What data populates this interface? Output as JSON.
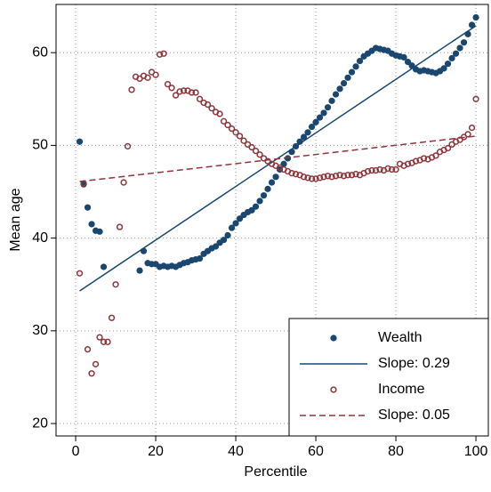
{
  "chart_data": {
    "type": "scatter",
    "x_label": "Percentile",
    "y_label": "Mean age",
    "xlim": [
      -4.9,
      103.1
    ],
    "ylim": [
      18.66,
      65.2
    ],
    "xticks": [
      0,
      20,
      40,
      60,
      80,
      100
    ],
    "yticks": [
      20,
      30,
      40,
      50,
      60
    ],
    "grid": true,
    "legend": "lower right",
    "series": [
      {
        "name": "Wealth",
        "style": "filled",
        "color": "#1a476f",
        "x": [
          1,
          2,
          3,
          4,
          5,
          6,
          7,
          16,
          17,
          18,
          19,
          20,
          21,
          22,
          23,
          24,
          25,
          26,
          27,
          28,
          29,
          30,
          31,
          32,
          33,
          34,
          35,
          36,
          37,
          38,
          39,
          40,
          41,
          42,
          43,
          44,
          45,
          46,
          47,
          48,
          49,
          50,
          51,
          52,
          53,
          54,
          55,
          56,
          57,
          58,
          59,
          60,
          61,
          62,
          63,
          64,
          65,
          66,
          67,
          68,
          69,
          70,
          71,
          72,
          73,
          74,
          75,
          76,
          77,
          78,
          79,
          80,
          81,
          82,
          83,
          84,
          85,
          86,
          87,
          88,
          89,
          90,
          91,
          92,
          93,
          94,
          95,
          96,
          97,
          98,
          99,
          100
        ],
        "values": [
          50.4,
          45.8,
          43.3,
          41.5,
          40.8,
          40.7,
          36.9,
          36.5,
          38.6,
          37.3,
          37.2,
          37.2,
          36.9,
          37.0,
          36.9,
          37.0,
          36.9,
          37.1,
          37.3,
          37.4,
          37.6,
          37.7,
          37.8,
          38.3,
          38.6,
          38.9,
          39.1,
          39.5,
          39.8,
          40.3,
          41.1,
          41.6,
          42.1,
          42.5,
          42.8,
          43.0,
          43.4,
          44.0,
          44.6,
          45.3,
          46.0,
          46.6,
          47.4,
          48.0,
          48.6,
          49.3,
          49.9,
          50.4,
          50.9,
          51.4,
          52.0,
          52.5,
          53.0,
          53.5,
          54.1,
          54.8,
          55.5,
          56.1,
          56.7,
          57.3,
          57.9,
          58.5,
          59.1,
          59.6,
          59.9,
          60.2,
          60.5,
          60.4,
          60.3,
          60.2,
          59.9,
          59.7,
          59.6,
          59.5,
          59.0,
          58.6,
          58.2,
          58.0,
          58.1,
          58.0,
          57.9,
          57.8,
          58.0,
          58.3,
          58.8,
          59.4,
          59.9,
          60.5,
          61.1,
          62.0,
          63.0,
          63.8
        ]
      },
      {
        "name": "Slope: 0.29",
        "style": "solid",
        "color": "#1a476f",
        "x": [
          1,
          100
        ],
        "values": [
          34.3,
          62.9
        ]
      },
      {
        "name": "Income",
        "style": "hollow",
        "color": "#90353b",
        "x": [
          1,
          2,
          3,
          4,
          5,
          6,
          7,
          8,
          9,
          10,
          11,
          12,
          13,
          14,
          15,
          16,
          17,
          18,
          19,
          20,
          21,
          22,
          23,
          24,
          25,
          26,
          27,
          28,
          29,
          30,
          31,
          32,
          33,
          34,
          35,
          36,
          37,
          38,
          39,
          40,
          41,
          42,
          43,
          44,
          45,
          46,
          47,
          48,
          49,
          50,
          51,
          52,
          53,
          54,
          55,
          56,
          57,
          58,
          59,
          60,
          61,
          62,
          63,
          64,
          65,
          66,
          67,
          68,
          69,
          70,
          71,
          72,
          73,
          74,
          75,
          76,
          77,
          78,
          79,
          80,
          81,
          82,
          83,
          84,
          85,
          86,
          87,
          88,
          89,
          90,
          91,
          92,
          93,
          94,
          95,
          96,
          97,
          98,
          99,
          100
        ],
        "values": [
          36.2,
          45.9,
          28.0,
          25.4,
          26.4,
          29.3,
          28.8,
          28.8,
          31.4,
          35.0,
          41.2,
          46.0,
          49.9,
          56.0,
          57.4,
          57.2,
          57.5,
          57.3,
          57.9,
          57.6,
          59.8,
          59.9,
          56.6,
          56.2,
          55.4,
          55.8,
          55.9,
          55.9,
          55.7,
          55.7,
          55.0,
          54.6,
          54.4,
          54.0,
          53.6,
          53.4,
          52.6,
          52.2,
          51.8,
          51.4,
          51.0,
          50.5,
          50.1,
          49.8,
          49.4,
          49.0,
          48.6,
          48.3,
          48.0,
          47.8,
          47.6,
          47.4,
          47.2,
          47.0,
          46.9,
          46.8,
          46.6,
          46.5,
          46.4,
          46.4,
          46.5,
          46.6,
          46.7,
          46.6,
          46.7,
          46.8,
          46.7,
          46.8,
          46.8,
          46.9,
          46.8,
          47.0,
          47.2,
          47.3,
          47.3,
          47.4,
          47.3,
          47.5,
          47.4,
          47.4,
          48.0,
          47.8,
          48.0,
          48.1,
          48.3,
          48.4,
          48.6,
          48.5,
          48.7,
          48.9,
          49.3,
          49.5,
          49.7,
          50.1,
          50.4,
          50.6,
          50.9,
          51.2,
          51.9,
          55.0
        ]
      },
      {
        "name": "Slope: 0.05",
        "style": "dashed",
        "color": "#90353b",
        "x": [
          1,
          100
        ],
        "values": [
          46.1,
          51.0
        ]
      }
    ]
  }
}
